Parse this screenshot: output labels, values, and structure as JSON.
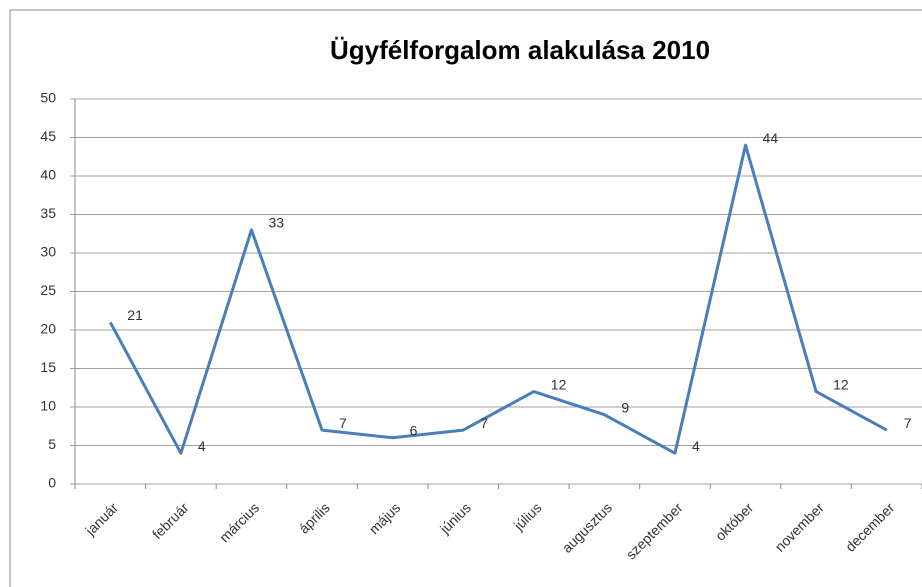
{
  "chart_data": {
    "type": "line",
    "title": "Ügyfélforgalom alakulása 2010",
    "categories": [
      "január",
      "február",
      "március",
      "április",
      "május",
      "június",
      "július",
      "augusztus",
      "szeptember",
      "október",
      "november",
      "december"
    ],
    "series": [
      {
        "name": "Ügyfélforgalom",
        "color": "#4a7ebb",
        "values": [
          21,
          4,
          33,
          7,
          6,
          7,
          12,
          9,
          4,
          44,
          12,
          7
        ]
      }
    ],
    "ylim": [
      0,
      50
    ],
    "yticks": [
      0,
      5,
      10,
      15,
      20,
      25,
      30,
      35,
      40,
      45,
      50
    ],
    "grid": true
  }
}
